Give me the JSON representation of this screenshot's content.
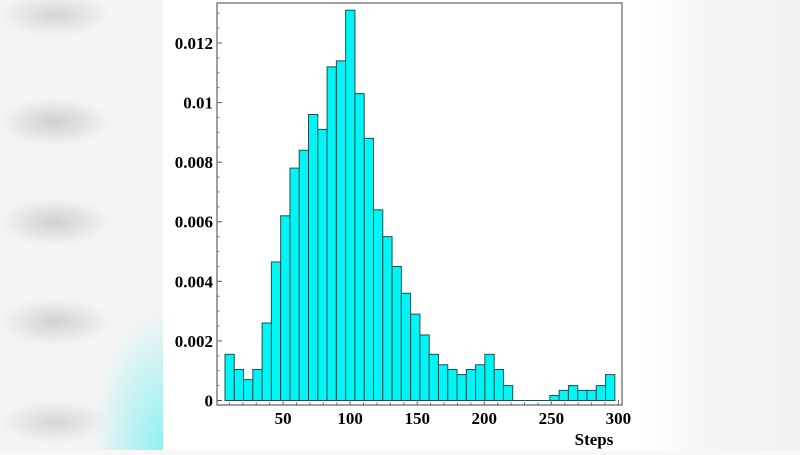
{
  "chart_data": {
    "type": "bar",
    "subtype": "histogram",
    "title": "",
    "xlabel": "Steps",
    "ylabel": "",
    "xlim": [
      0,
      300
    ],
    "ylim": [
      0,
      0.0132
    ],
    "grid": false,
    "legend": null,
    "x_ticks": [
      "50",
      "100",
      "150",
      "200",
      "250",
      "300"
    ],
    "y_ticks": [
      "0",
      "0.002",
      "0.004",
      "0.006",
      "0.008",
      "0.01",
      "0.012"
    ],
    "bin_start": 6.7,
    "bin_width": 6.92,
    "bin_count": 42,
    "values": [
      0.00155,
      0.00104,
      0.0007,
      0.00104,
      0.0026,
      0.00465,
      0.0062,
      0.0078,
      0.0084,
      0.0096,
      0.0091,
      0.0112,
      0.0114,
      0.0131,
      0.0103,
      0.0088,
      0.0064,
      0.0055,
      0.0045,
      0.0036,
      0.0029,
      0.0022,
      0.00155,
      0.0012,
      0.00104,
      0.00087,
      0.00104,
      0.0012,
      0.00155,
      0.00104,
      0.0005,
      0,
      0,
      0,
      0,
      0.00017,
      0.00034,
      0.0005,
      0.00034,
      0.00034,
      0.0005,
      0.00087
    ],
    "colors": {
      "bar_fill": "#00f5f5",
      "bar_edge": "#1f4f55",
      "frame": "#808080"
    }
  }
}
